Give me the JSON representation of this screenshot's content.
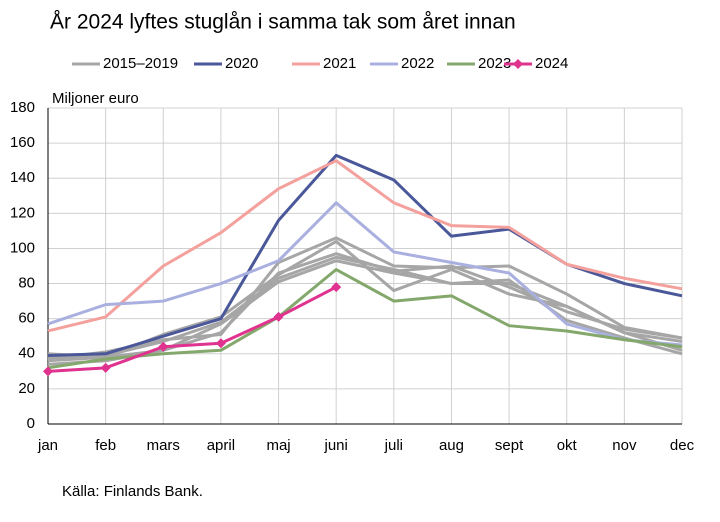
{
  "chart_data": {
    "type": "line",
    "title": "År 2024 lyftes stuglån i samma tak som året innan",
    "y_label": "Miljoner euro",
    "source": "Källa: Finlands Bank.",
    "categories": [
      "jan",
      "feb",
      "mars",
      "april",
      "maj",
      "juni",
      "juli",
      "aug",
      "sept",
      "okt",
      "nov",
      "dec"
    ],
    "ylim": [
      0,
      180
    ],
    "yticks": [
      0,
      20,
      40,
      60,
      80,
      100,
      120,
      140,
      160,
      180
    ],
    "grid": true,
    "series": [
      {
        "name": "2015–2019",
        "color": "#a6a6a6",
        "values": [
          [
            38,
            39,
            47,
            58,
            83,
            95,
            88,
            80,
            80,
            67,
            52,
            42
          ],
          [
            36,
            38,
            51,
            61,
            85,
            104,
            76,
            88,
            74,
            67,
            52,
            47
          ],
          [
            37,
            41,
            48,
            51,
            92,
            106,
            90,
            89,
            90,
            74,
            55,
            49
          ],
          [
            40,
            38,
            42,
            57,
            81,
            93,
            86,
            80,
            82,
            59,
            49,
            40
          ],
          [
            34,
            36,
            42,
            52,
            86,
            97,
            87,
            90,
            78,
            64,
            54,
            49
          ]
        ]
      },
      {
        "name": "2020",
        "color": "#4a5799",
        "values": [
          39,
          40,
          50,
          60,
          116,
          153,
          139,
          107,
          111,
          91,
          80,
          73
        ]
      },
      {
        "name": "2021",
        "color": "#f4a09c",
        "values": [
          53,
          61,
          90,
          109,
          134,
          150,
          126,
          113,
          112,
          91,
          83,
          77
        ]
      },
      {
        "name": "2022",
        "color": "#a9b0e0",
        "values": [
          57,
          68,
          70,
          80,
          93,
          126,
          98,
          92,
          86,
          57,
          48,
          45
        ]
      },
      {
        "name": "2023",
        "color": "#84a86c",
        "values": [
          32,
          37,
          40,
          42,
          61,
          88,
          70,
          73,
          56,
          53,
          48,
          44
        ]
      },
      {
        "name": "2024",
        "color": "#e0338f",
        "marker": "diamond",
        "values": [
          30,
          32,
          44,
          46,
          61,
          78,
          null,
          null,
          null,
          null,
          null,
          null
        ]
      }
    ]
  }
}
